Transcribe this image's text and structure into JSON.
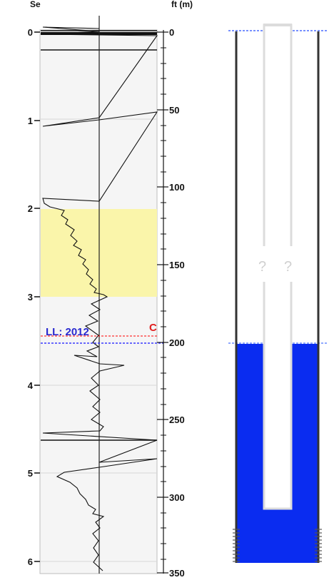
{
  "log_panel": {
    "left_axis_title": "Se",
    "right_axis_title": "ft (m)",
    "left_ticks": [
      "0",
      "1",
      "2",
      "3",
      "4",
      "5",
      "6"
    ],
    "right_ticks": [
      "0",
      "50",
      "100",
      "150",
      "200",
      "250",
      "300",
      "350"
    ],
    "water_level_label": "LL: 2012",
    "marker_label": "C",
    "highlight_color": "#faf5aa",
    "panel_color": "#f5f5f5",
    "water_line_color": "#3a3aff",
    "marker_line_color": "#ff0000",
    "label_color": "#2a2ad0",
    "marker_label_color": "#e02020"
  },
  "well_panel": {
    "unknown_labels": [
      "?",
      "?"
    ],
    "water_color": "#0a2cf0",
    "casing_color": "#333333",
    "pipe_color": "#dcdcdc"
  }
}
